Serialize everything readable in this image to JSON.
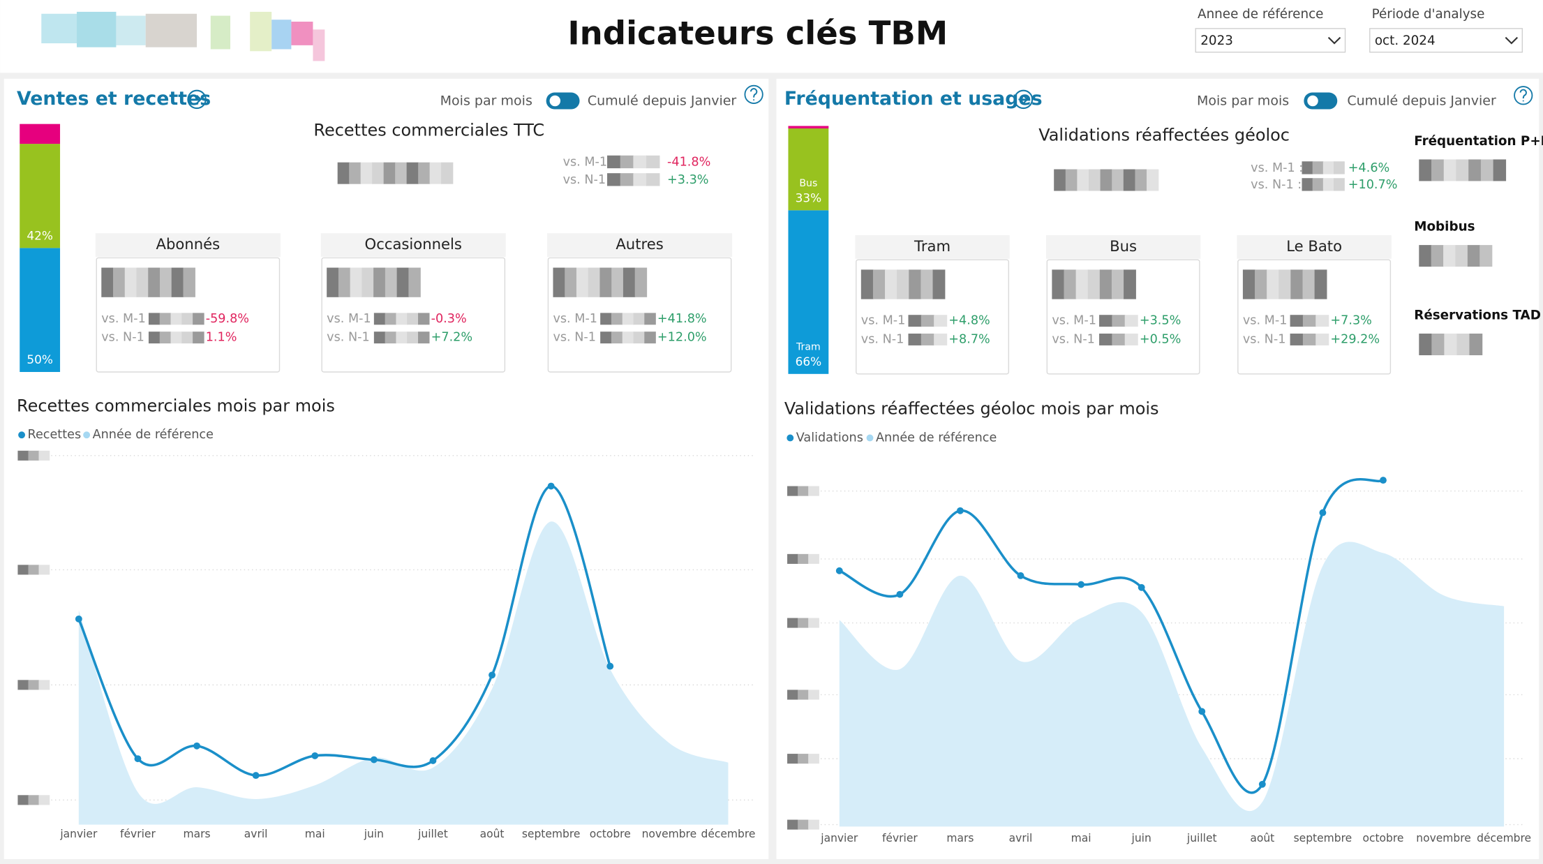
{
  "header": {
    "title": "Indicateurs clés TBM",
    "filters": [
      {
        "label": "Annee de référence",
        "value": "2023"
      },
      {
        "label": "Période d'analyse",
        "value": "oct. 2024"
      }
    ]
  },
  "panels": [
    {
      "title": "Ventes et recettes",
      "toggle": [
        "Mois par mois",
        "Cumulé depuis Janvier"
      ],
      "kpi": {
        "title": "Recettes commerciales TTC",
        "comparisons": [
          {
            "label": "vs. M-1",
            "delta": "-41.8%",
            "color": "#e0245e"
          },
          {
            "label": "vs. N-1",
            "delta": "+3.3%",
            "color": "#2e9e6a"
          }
        ]
      },
      "cards": [
        {
          "title": "Abonnés",
          "comparisons": [
            {
              "label": "vs. M-1",
              "delta": "-59.8%",
              "color": "#e0245e"
            },
            {
              "label": "vs. N-1",
              "delta": "1.1%",
              "color": "#e0245e"
            }
          ]
        },
        {
          "title": "Occasionnels",
          "comparisons": [
            {
              "label": "vs. M-1 :",
              "delta": "-0.3%",
              "color": "#e0245e"
            },
            {
              "label": "vs. N-1 :",
              "delta": "+7.2%",
              "color": "#2e9e6a"
            }
          ]
        },
        {
          "title": "Autres",
          "comparisons": [
            {
              "label": "vs. M-1 :",
              "delta": "+41.8%",
              "color": "#2e9e6a"
            },
            {
              "label": "vs. N-1 :",
              "delta": "+12.0%",
              "color": "#2e9e6a"
            }
          ]
        }
      ]
    },
    {
      "title": "Fréquentation et usages",
      "toggle": [
        "Mois par mois",
        "Cumulé depuis Janvier"
      ],
      "kpi": {
        "title": "Validations réaffectées géoloc",
        "comparisons": [
          {
            "label": "vs. M-1 :",
            "delta": "+4.6%",
            "color": "#2e9e6a"
          },
          {
            "label": "vs. N-1 :",
            "delta": "+10.7%",
            "color": "#2e9e6a"
          }
        ]
      },
      "cards": [
        {
          "title": "Tram",
          "comparisons": [
            {
              "label": "vs. M-1 :",
              "delta": "+4.8%",
              "color": "#2e9e6a"
            },
            {
              "label": "vs. N-1 :",
              "delta": "+8.7%",
              "color": "#2e9e6a"
            }
          ]
        },
        {
          "title": "Bus",
          "comparisons": [
            {
              "label": "vs. M-1 :",
              "delta": "+3.5%",
              "color": "#2e9e6a"
            },
            {
              "label": "vs. N-1 :",
              "delta": "+0.5%",
              "color": "#2e9e6a"
            }
          ]
        },
        {
          "title": "Le Bato",
          "comparisons": [
            {
              "label": "vs. M-1 :",
              "delta": "+7.3%",
              "color": "#2e9e6a"
            },
            {
              "label": "vs. N-1 :",
              "delta": "+29.2%",
              "color": "#2e9e6a"
            }
          ]
        }
      ],
      "side": [
        "Fréquentation P+R",
        "Mobibus",
        "Réservations TAD"
      ]
    }
  ],
  "chart_data": [
    {
      "type": "stacked-bar",
      "ylim": [
        0,
        100
      ],
      "series": [
        {
          "values": [
            50
          ],
          "value_labels": [
            "50%"
          ],
          "color": "#0e9bd8"
        },
        {
          "values": [
            42
          ],
          "value_labels": [
            "42%"
          ],
          "color": "#98c21f"
        },
        {
          "values": [
            8
          ],
          "color": "#e6007e"
        }
      ]
    },
    {
      "type": "line",
      "title": "Recettes commerciales mois par mois",
      "categories": [
        "janvier",
        "février",
        "mars",
        "avril",
        "mai",
        "juin",
        "juillet",
        "août",
        "septembre",
        "octobre",
        "novembre",
        "décembre"
      ],
      "ylim": [
        0,
        375
      ],
      "yticks": [
        25,
        142,
        259,
        375
      ],
      "grid": true,
      "series": [
        {
          "name": "Recettes",
          "color": "#1a8fc9",
          "values": [
            209,
            67,
            80,
            50,
            70,
            66,
            65,
            152,
            344,
            161,
            null,
            null
          ]
        },
        {
          "name": "Année de référence",
          "color": "#a6d8f2",
          "fill": true,
          "values": [
            218,
            33,
            38,
            26,
            40,
            68,
            58,
            138,
            308,
            158,
            83,
            63
          ]
        }
      ]
    },
    {
      "type": "stacked-bar",
      "ylim": [
        0,
        100
      ],
      "series": [
        {
          "name": "Tram",
          "values": [
            66
          ],
          "value_labels": [
            "66%"
          ],
          "color": "#0e9bd8"
        },
        {
          "name": "Bus",
          "values": [
            33
          ],
          "value_labels": [
            "33%"
          ],
          "color": "#98c21f"
        },
        {
          "values": [
            1
          ],
          "color": "#e6007e"
        }
      ]
    },
    {
      "type": "line",
      "title": "Validations réaffectées géoloc mois par mois",
      "categories": [
        "janvier",
        "février",
        "mars",
        "avril",
        "mai",
        "juin",
        "juillet",
        "août",
        "septembre",
        "octobre",
        "novembre",
        "décembre"
      ],
      "ylim": [
        0,
        377
      ],
      "yticks": [
        2,
        69,
        134,
        207,
        272,
        341
      ],
      "grid": true,
      "series": [
        {
          "name": "Validations",
          "color": "#1a8fc9",
          "values": [
            260,
            236,
            321,
            255,
            246,
            243,
            117,
            43,
            319,
            352,
            null,
            null
          ]
        },
        {
          "name": "Année de référence",
          "color": "#a6d8f2",
          "fill": true,
          "values": [
            210,
            160,
            255,
            168,
            212,
            218,
            80,
            25,
            265,
            278,
            235,
            224
          ]
        }
      ]
    }
  ]
}
